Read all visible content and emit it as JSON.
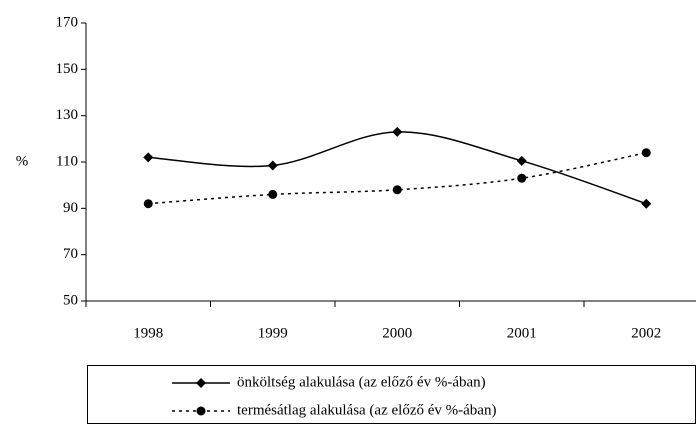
{
  "chart_data": {
    "type": "line",
    "y_label": "%",
    "categories": [
      "1998",
      "1999",
      "2000",
      "2001",
      "2002"
    ],
    "series": [
      {
        "name": "önköltség alakulása (az előző év %-ában)",
        "color": "#000000",
        "marker": "diamond",
        "dash": "solid",
        "values": [
          112,
          108.5,
          123,
          110.5,
          92
        ]
      },
      {
        "name": "termésátlag alakulása (az előző év %-ában)",
        "color": "#000000",
        "marker": "circle",
        "dash": "dotted",
        "values": [
          92,
          96,
          98,
          103,
          114
        ]
      }
    ],
    "ylim": [
      50,
      170
    ],
    "yticks": [
      50,
      70,
      90,
      110,
      130,
      150,
      170
    ],
    "smooth": true
  }
}
